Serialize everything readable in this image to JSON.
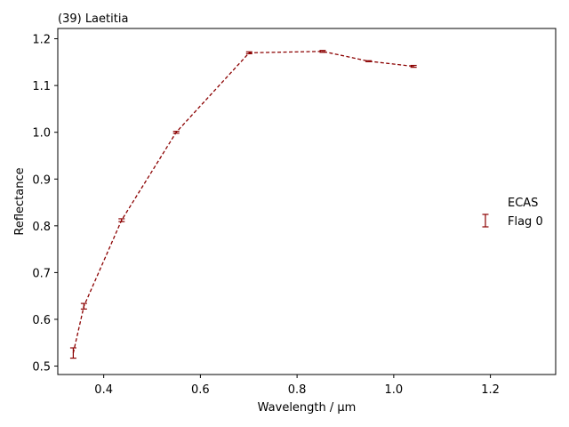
{
  "chart_data": {
    "type": "line",
    "title": "(39) Laetitia",
    "xlabel": "Wavelength / µm",
    "ylabel": "Reflectance",
    "xlim": [
      0.305,
      1.335
    ],
    "ylim": [
      0.482,
      1.222
    ],
    "xticks": [
      0.4,
      0.6,
      0.8,
      1.0,
      1.2
    ],
    "xtick_labels": [
      "0.4",
      "0.6",
      "0.8",
      "1.0",
      "1.2"
    ],
    "yticks": [
      0.5,
      0.6,
      0.7,
      0.8,
      0.9,
      1.0,
      1.1,
      1.2
    ],
    "ytick_labels": [
      "0.5",
      "0.6",
      "0.7",
      "0.8",
      "0.9",
      "1.0",
      "1.1",
      "1.2"
    ],
    "grid": false,
    "legend": {
      "placement": "center-right",
      "title": "ECAS",
      "entries": [
        "Flag 0"
      ]
    },
    "series": [
      {
        "name": "Flag 0",
        "color": "#8b0000",
        "linestyle": "dashed",
        "x": [
          0.337,
          0.359,
          0.437,
          0.55,
          0.701,
          0.853,
          0.948,
          1.041
        ],
        "y": [
          0.528,
          0.628,
          0.812,
          1.0,
          1.17,
          1.173,
          1.152,
          1.141
        ],
        "yerr": [
          0.011,
          0.006,
          0.003,
          0.002,
          0.002,
          0.002,
          0.001,
          0.002
        ]
      }
    ]
  }
}
